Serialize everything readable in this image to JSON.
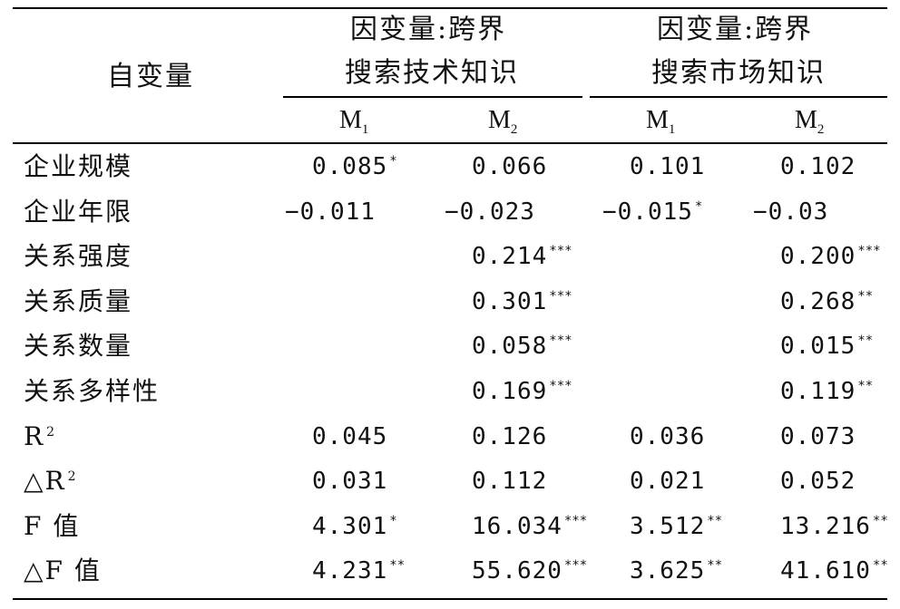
{
  "header": {
    "row_label": "自变量",
    "group1_line1": "因变量:跨界",
    "group1_line2": "搜索技术知识",
    "group2_line1": "因变量:跨界",
    "group2_line2": "搜索市场知识",
    "model_letter": "M",
    "m1_sub": "1",
    "m2_sub": "2"
  },
  "rows": [
    {
      "label": "企业规模",
      "c": [
        "0.085",
        "0.066",
        "0.101",
        "0.102"
      ],
      "s": [
        "*",
        "",
        "",
        ""
      ]
    },
    {
      "label": "企业年限",
      "c": [
        "−0.011",
        "−0.023",
        "−0.015",
        "−0.03"
      ],
      "s": [
        "",
        "",
        "*",
        ""
      ]
    },
    {
      "label": "关系强度",
      "c": [
        "",
        "0.214",
        "",
        "0.200"
      ],
      "s": [
        "",
        "***",
        "",
        "***"
      ]
    },
    {
      "label": "关系质量",
      "c": [
        "",
        "0.301",
        "",
        "0.268"
      ],
      "s": [
        "",
        "***",
        "",
        "**"
      ]
    },
    {
      "label": "关系数量",
      "c": [
        "",
        "0.058",
        "",
        "0.015"
      ],
      "s": [
        "",
        "***",
        "",
        "**"
      ]
    },
    {
      "label": "关系多样性",
      "c": [
        "",
        "0.169",
        "",
        "0.119"
      ],
      "s": [
        "",
        "***",
        "",
        "**"
      ]
    },
    {
      "label": "R",
      "label_sup": "2",
      "c": [
        "0.045",
        "0.126",
        "0.036",
        "0.073"
      ],
      "s": [
        "",
        "",
        "",
        ""
      ]
    },
    {
      "label": "△R",
      "label_sup": "2",
      "c": [
        "0.031",
        "0.112",
        "0.021",
        "0.052"
      ],
      "s": [
        "",
        "",
        "",
        ""
      ]
    },
    {
      "label": "F 值",
      "c": [
        "4.301",
        "16.034",
        "3.512",
        "13.216"
      ],
      "s": [
        "*",
        "***",
        "**",
        "**"
      ]
    },
    {
      "label": "△F 值",
      "c": [
        "4.231",
        "55.620",
        "3.625",
        "41.610"
      ],
      "s": [
        "**",
        "***",
        "**",
        "**"
      ]
    }
  ]
}
